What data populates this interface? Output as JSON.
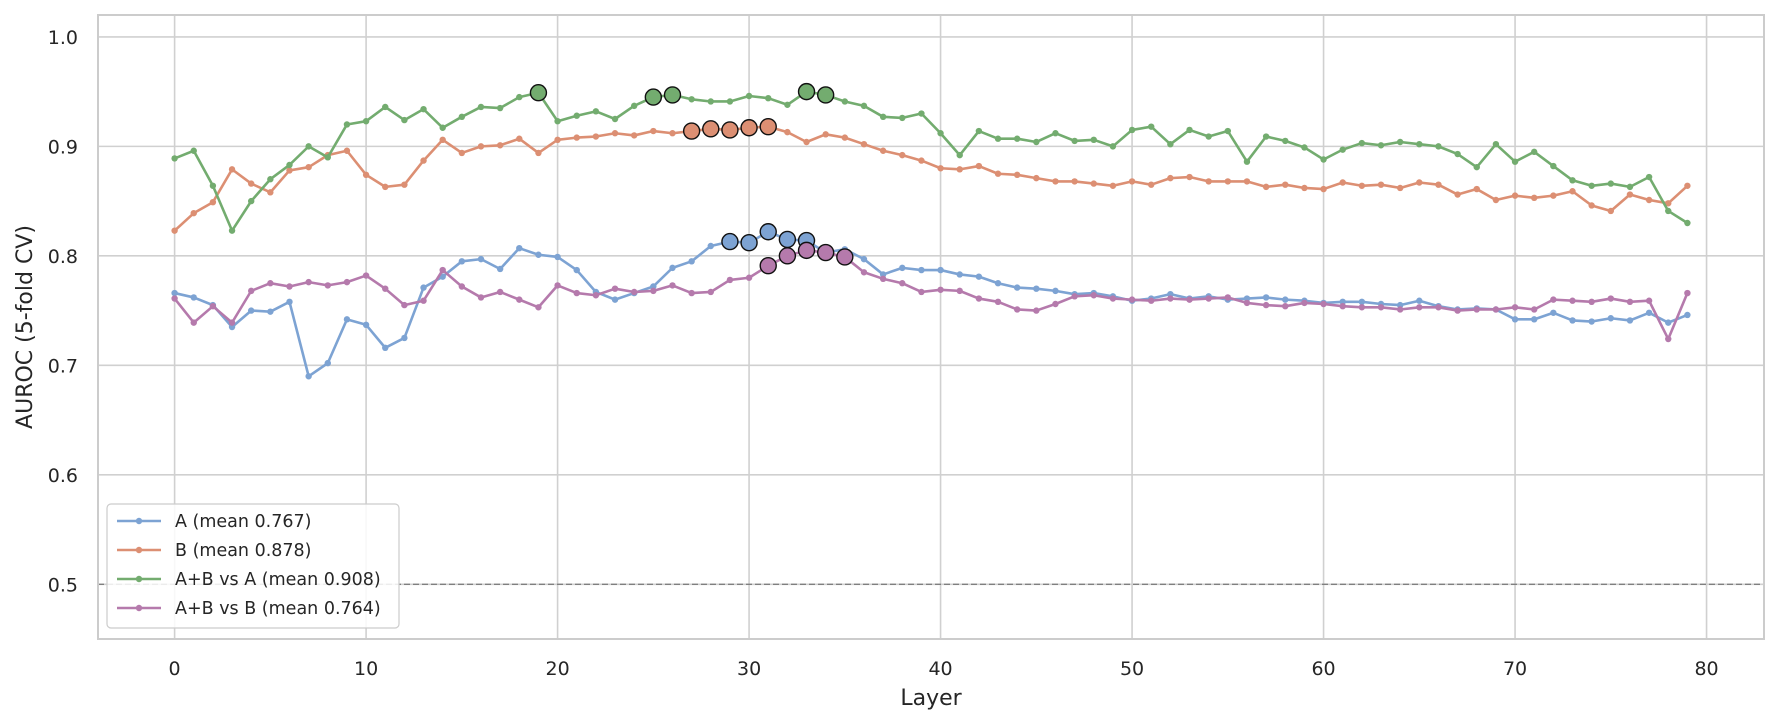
{
  "chart_data": {
    "type": "line",
    "xlabel": "Layer",
    "ylabel": "AUROC (5-fold CV)",
    "xlim": [
      -4,
      83
    ],
    "ylim": [
      0.45,
      1.02
    ],
    "xticks": [
      0,
      10,
      20,
      30,
      40,
      50,
      60,
      70,
      80
    ],
    "yticks": [
      0.5,
      0.6,
      0.7,
      0.8,
      0.9,
      1.0
    ],
    "xtick_labels": [
      "0",
      "10",
      "20",
      "30",
      "40",
      "50",
      "60",
      "70",
      "80"
    ],
    "ytick_labels": [
      "0.5",
      "0.6",
      "0.7",
      "0.8",
      "0.9",
      "1.0"
    ],
    "grid": true,
    "legend_position": "bottom-left",
    "reference_line": {
      "y": 0.5,
      "style": "dashed",
      "color": "#7f7f7f"
    },
    "x": [
      0,
      1,
      2,
      3,
      4,
      5,
      6,
      7,
      8,
      9,
      10,
      11,
      12,
      13,
      14,
      15,
      16,
      17,
      18,
      19,
      20,
      21,
      22,
      23,
      24,
      25,
      26,
      27,
      28,
      29,
      30,
      31,
      32,
      33,
      34,
      35,
      36,
      37,
      38,
      39,
      40,
      41,
      42,
      43,
      44,
      45,
      46,
      47,
      48,
      49,
      50,
      51,
      52,
      53,
      54,
      55,
      56,
      57,
      58,
      59,
      60,
      61,
      62,
      63,
      64,
      65,
      66,
      67,
      68,
      69,
      70,
      71,
      72,
      73,
      74,
      75,
      76,
      77,
      78,
      79
    ],
    "series": [
      {
        "name": "A (mean 0.767)",
        "color": "#7da3d3",
        "values": [
          0.766,
          0.762,
          0.755,
          0.735,
          0.75,
          0.749,
          0.758,
          0.69,
          0.702,
          0.742,
          0.737,
          0.716,
          0.725,
          0.771,
          0.781,
          0.795,
          0.797,
          0.788,
          0.807,
          0.801,
          0.799,
          0.787,
          0.767,
          0.76,
          0.766,
          0.772,
          0.789,
          0.795,
          0.809,
          0.813,
          0.812,
          0.822,
          0.815,
          0.814,
          0.803,
          0.806,
          0.797,
          0.783,
          0.789,
          0.787,
          0.787,
          0.783,
          0.781,
          0.775,
          0.771,
          0.77,
          0.768,
          0.765,
          0.766,
          0.763,
          0.759,
          0.761,
          0.765,
          0.761,
          0.763,
          0.76,
          0.761,
          0.762,
          0.76,
          0.759,
          0.757,
          0.758,
          0.758,
          0.756,
          0.755,
          0.759,
          0.754,
          0.751,
          0.752,
          0.751,
          0.742,
          0.742,
          0.748,
          0.741,
          0.74,
          0.743,
          0.741,
          0.748,
          0.739,
          0.746
        ],
        "highlights": [
          29,
          30,
          31,
          32,
          33
        ]
      },
      {
        "name": "B (mean 0.878)",
        "color": "#dc8f73",
        "values": [
          0.823,
          0.839,
          0.849,
          0.879,
          0.866,
          0.858,
          0.878,
          0.881,
          0.892,
          0.896,
          0.874,
          0.863,
          0.865,
          0.887,
          0.906,
          0.894,
          0.9,
          0.901,
          0.907,
          0.894,
          0.906,
          0.908,
          0.909,
          0.912,
          0.91,
          0.914,
          0.912,
          0.914,
          0.916,
          0.915,
          0.917,
          0.918,
          0.913,
          0.904,
          0.911,
          0.908,
          0.902,
          0.896,
          0.892,
          0.887,
          0.88,
          0.879,
          0.882,
          0.875,
          0.874,
          0.871,
          0.868,
          0.868,
          0.866,
          0.864,
          0.868,
          0.865,
          0.871,
          0.872,
          0.868,
          0.868,
          0.868,
          0.863,
          0.865,
          0.862,
          0.861,
          0.867,
          0.864,
          0.865,
          0.862,
          0.867,
          0.865,
          0.856,
          0.861,
          0.851,
          0.855,
          0.853,
          0.855,
          0.859,
          0.846,
          0.841,
          0.856,
          0.851,
          0.848,
          0.864
        ],
        "highlights": [
          27,
          28,
          29,
          30,
          31
        ]
      },
      {
        "name": "A+B vs A (mean 0.908)",
        "color": "#73ac6f",
        "values": [
          0.889,
          0.896,
          0.864,
          0.823,
          0.85,
          0.87,
          0.883,
          0.9,
          0.89,
          0.92,
          0.923,
          0.936,
          0.924,
          0.934,
          0.917,
          0.927,
          0.936,
          0.935,
          0.945,
          0.949,
          0.923,
          0.928,
          0.932,
          0.925,
          0.937,
          0.945,
          0.947,
          0.943,
          0.941,
          0.941,
          0.946,
          0.944,
          0.938,
          0.95,
          0.947,
          0.941,
          0.937,
          0.927,
          0.926,
          0.93,
          0.912,
          0.892,
          0.914,
          0.907,
          0.907,
          0.904,
          0.912,
          0.905,
          0.906,
          0.9,
          0.915,
          0.918,
          0.902,
          0.915,
          0.909,
          0.914,
          0.886,
          0.909,
          0.905,
          0.899,
          0.888,
          0.897,
          0.903,
          0.901,
          0.904,
          0.902,
          0.9,
          0.893,
          0.881,
          0.902,
          0.886,
          0.895,
          0.882,
          0.869,
          0.864,
          0.866,
          0.863,
          0.872,
          0.841,
          0.83
        ],
        "highlights": [
          19,
          25,
          26,
          33,
          34
        ]
      },
      {
        "name": "A+B vs B (mean 0.764)",
        "color": "#b57aac",
        "values": [
          0.761,
          0.739,
          0.754,
          0.739,
          0.768,
          0.775,
          0.772,
          0.776,
          0.773,
          0.776,
          0.782,
          0.77,
          0.755,
          0.759,
          0.787,
          0.772,
          0.762,
          0.767,
          0.76,
          0.753,
          0.773,
          0.766,
          0.764,
          0.77,
          0.767,
          0.768,
          0.773,
          0.766,
          0.767,
          0.778,
          0.78,
          0.791,
          0.8,
          0.805,
          0.803,
          0.799,
          0.785,
          0.779,
          0.775,
          0.767,
          0.769,
          0.768,
          0.761,
          0.758,
          0.751,
          0.75,
          0.756,
          0.763,
          0.764,
          0.761,
          0.76,
          0.759,
          0.761,
          0.76,
          0.761,
          0.762,
          0.757,
          0.755,
          0.754,
          0.757,
          0.756,
          0.754,
          0.753,
          0.753,
          0.751,
          0.753,
          0.753,
          0.75,
          0.751,
          0.751,
          0.753,
          0.751,
          0.76,
          0.759,
          0.758,
          0.761,
          0.758,
          0.759,
          0.724,
          0.766
        ],
        "highlights": [
          31,
          32,
          33,
          34,
          35
        ]
      }
    ]
  }
}
